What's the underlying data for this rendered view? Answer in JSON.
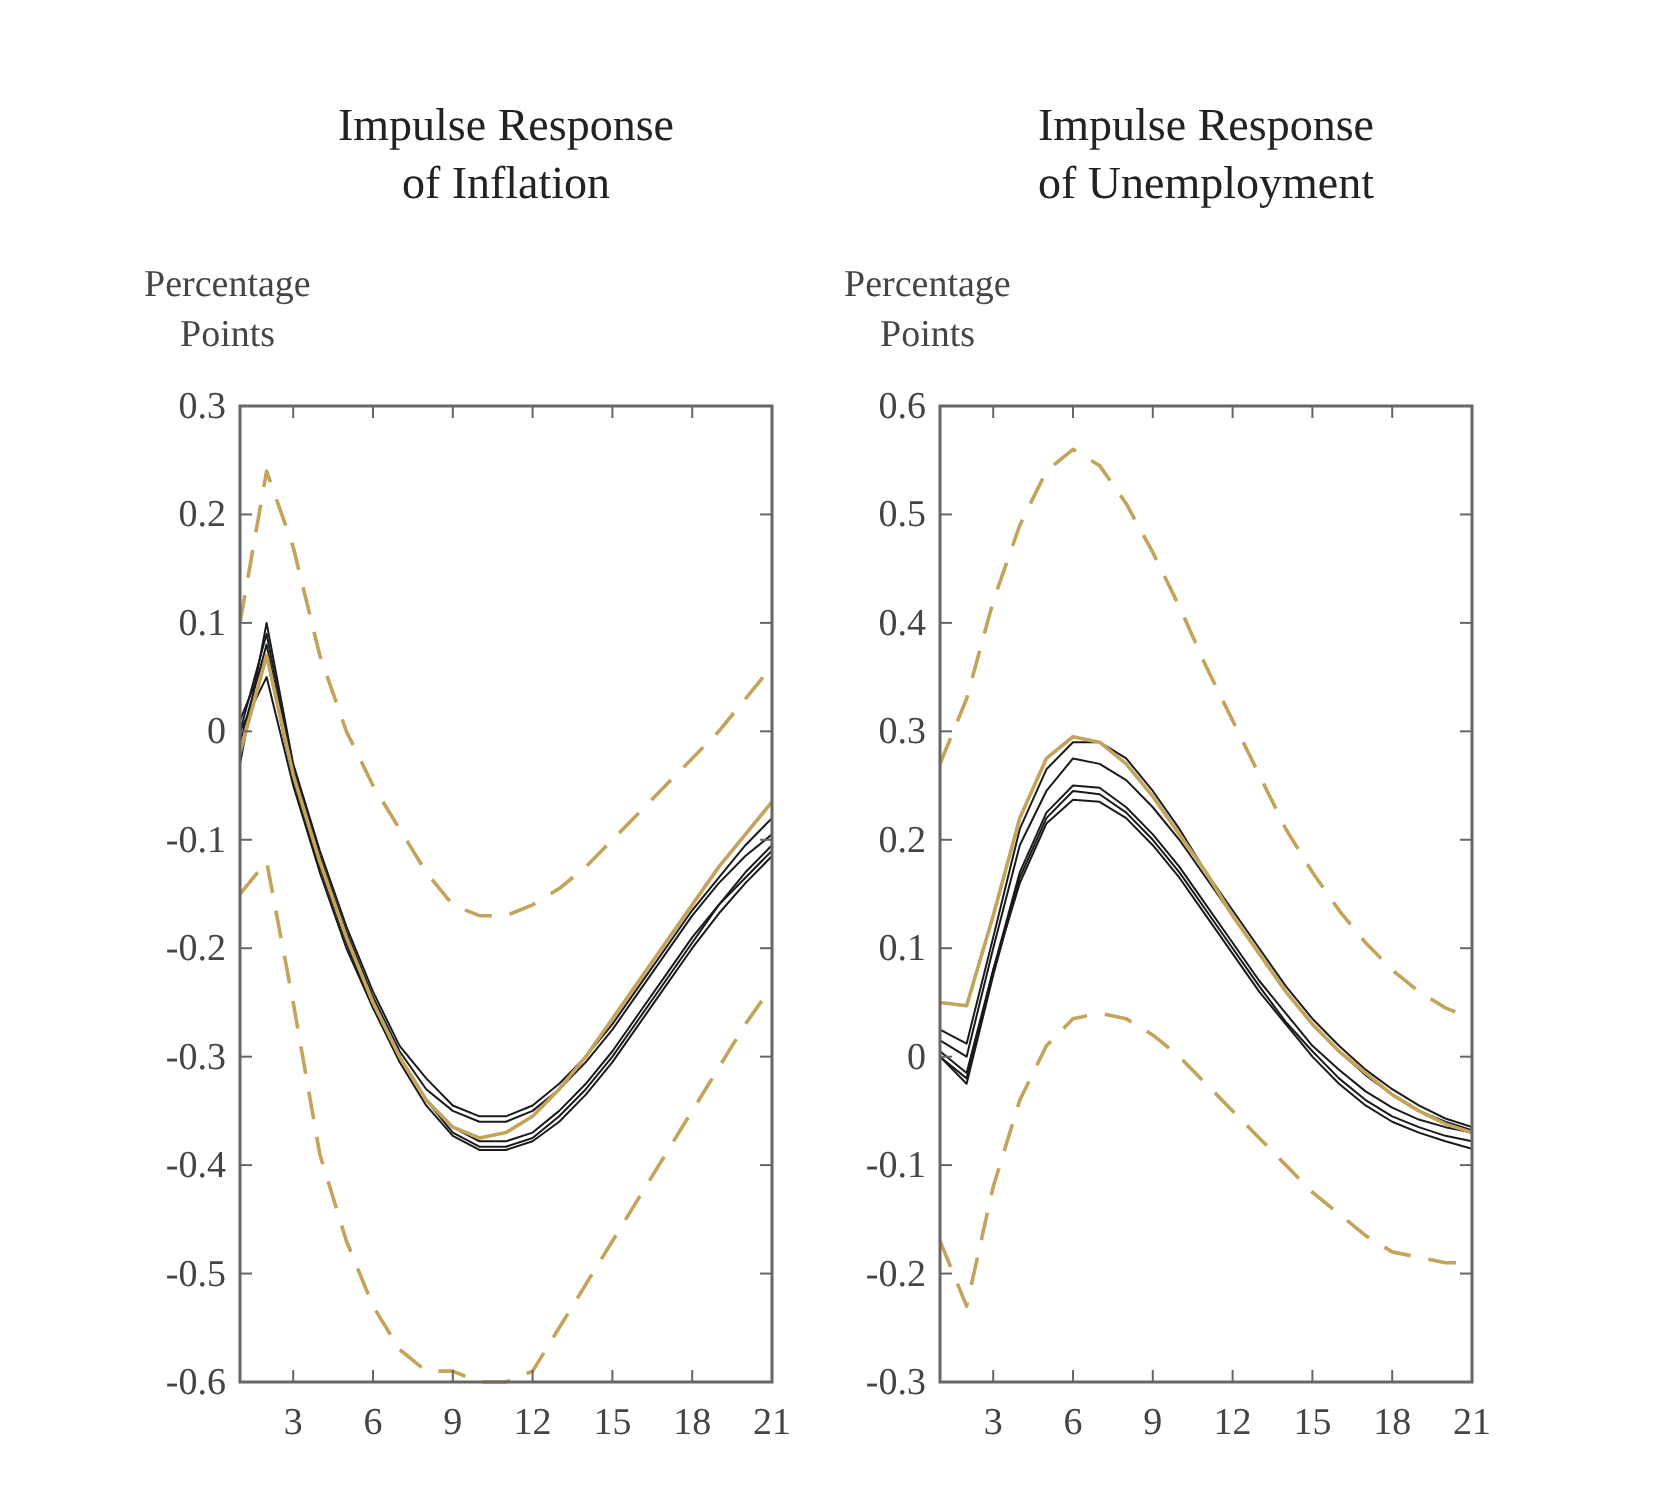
{
  "chart_data": [
    {
      "type": "line",
      "title": "Impulse Response\nof Inflation",
      "ylabel": "Percentage\nPoints",
      "x": [
        1,
        2,
        3,
        4,
        5,
        6,
        7,
        8,
        9,
        10,
        11,
        12,
        13,
        14,
        15,
        16,
        17,
        18,
        19,
        20,
        21
      ],
      "xlim": [
        1,
        21
      ],
      "xticks": [
        3,
        6,
        9,
        12,
        15,
        18,
        21
      ],
      "ylim": [
        -0.6,
        0.3
      ],
      "yticks": [
        -0.6,
        -0.5,
        -0.4,
        -0.3,
        -0.2,
        -0.1,
        0,
        0.1,
        0.2,
        0.3
      ],
      "series": [
        {
          "color": "#1a1a1a",
          "values": [
            -0.03,
            0.1,
            -0.03,
            -0.11,
            -0.18,
            -0.24,
            -0.29,
            -0.32,
            -0.345,
            -0.355,
            -0.355,
            -0.345,
            -0.325,
            -0.3,
            -0.27,
            -0.235,
            -0.2,
            -0.165,
            -0.135,
            -0.105,
            -0.08
          ]
        },
        {
          "color": "#1a1a1a",
          "values": [
            0.0,
            0.09,
            -0.035,
            -0.115,
            -0.185,
            -0.245,
            -0.295,
            -0.33,
            -0.35,
            -0.36,
            -0.36,
            -0.35,
            -0.33,
            -0.305,
            -0.275,
            -0.24,
            -0.205,
            -0.17,
            -0.14,
            -0.115,
            -0.095
          ]
        },
        {
          "color": "#1a1a1a",
          "values": [
            -0.01,
            0.08,
            -0.04,
            -0.12,
            -0.19,
            -0.25,
            -0.3,
            -0.34,
            -0.37,
            -0.383,
            -0.383,
            -0.375,
            -0.355,
            -0.33,
            -0.3,
            -0.265,
            -0.23,
            -0.195,
            -0.16,
            -0.13,
            -0.105
          ]
        },
        {
          "color": "#1a1a1a",
          "values": [
            0.01,
            0.07,
            -0.045,
            -0.125,
            -0.195,
            -0.255,
            -0.305,
            -0.345,
            -0.373,
            -0.386,
            -0.386,
            -0.378,
            -0.36,
            -0.335,
            -0.305,
            -0.27,
            -0.235,
            -0.2,
            -0.168,
            -0.14,
            -0.115
          ]
        },
        {
          "color": "#1a1a1a",
          "values": [
            0.0,
            0.05,
            -0.05,
            -0.13,
            -0.2,
            -0.255,
            -0.3,
            -0.34,
            -0.365,
            -0.378,
            -0.378,
            -0.37,
            -0.35,
            -0.325,
            -0.295,
            -0.26,
            -0.225,
            -0.19,
            -0.16,
            -0.135,
            -0.11
          ]
        },
        {
          "color": "#c4a35a",
          "values": [
            -0.02,
            0.07,
            -0.04,
            -0.12,
            -0.19,
            -0.25,
            -0.3,
            -0.34,
            -0.365,
            -0.375,
            -0.37,
            -0.355,
            -0.33,
            -0.3,
            -0.265,
            -0.23,
            -0.195,
            -0.16,
            -0.125,
            -0.095,
            -0.065
          ]
        },
        {
          "color": "#c4a35a",
          "line_style": "dashed",
          "values": [
            0.1,
            0.24,
            0.17,
            0.07,
            0.0,
            -0.05,
            -0.09,
            -0.13,
            -0.16,
            -0.17,
            -0.17,
            -0.16,
            -0.145,
            -0.125,
            -0.1,
            -0.075,
            -0.05,
            -0.025,
            0.0,
            0.03,
            0.06
          ]
        },
        {
          "color": "#c4a35a",
          "line_style": "dashed",
          "values": [
            -0.15,
            -0.12,
            -0.25,
            -0.39,
            -0.47,
            -0.53,
            -0.57,
            -0.59,
            -0.59,
            -0.6,
            -0.6,
            -0.59,
            -0.55,
            -0.51,
            -0.47,
            -0.43,
            -0.39,
            -0.35,
            -0.31,
            -0.27,
            -0.235
          ]
        }
      ]
    },
    {
      "type": "line",
      "title": "Impulse Response\nof Unemployment",
      "ylabel": "Percentage\nPoints",
      "x": [
        1,
        2,
        3,
        4,
        5,
        6,
        7,
        8,
        9,
        10,
        11,
        12,
        13,
        14,
        15,
        16,
        17,
        18,
        19,
        20,
        21
      ],
      "xlim": [
        1,
        21
      ],
      "xticks": [
        3,
        6,
        9,
        12,
        15,
        18,
        21
      ],
      "ylim": [
        -0.3,
        0.6
      ],
      "yticks": [
        -0.3,
        -0.2,
        -0.1,
        0,
        0.1,
        0.2,
        0.3,
        0.4,
        0.5,
        0.6
      ],
      "series": [
        {
          "color": "#1a1a1a",
          "values": [
            0.025,
            0.012,
            0.11,
            0.21,
            0.265,
            0.29,
            0.29,
            0.275,
            0.245,
            0.21,
            0.17,
            0.135,
            0.1,
            0.065,
            0.035,
            0.01,
            -0.012,
            -0.03,
            -0.045,
            -0.057,
            -0.065
          ]
        },
        {
          "color": "#1a1a1a",
          "values": [
            0.015,
            0.0,
            0.1,
            0.195,
            0.245,
            0.275,
            0.27,
            0.255,
            0.23,
            0.2,
            0.165,
            0.13,
            0.095,
            0.06,
            0.03,
            0.005,
            -0.017,
            -0.035,
            -0.05,
            -0.06,
            -0.068
          ]
        },
        {
          "color": "#1a1a1a",
          "values": [
            0.0,
            -0.02,
            0.08,
            0.17,
            0.225,
            0.25,
            0.248,
            0.23,
            0.205,
            0.175,
            0.14,
            0.105,
            0.07,
            0.04,
            0.01,
            -0.012,
            -0.032,
            -0.047,
            -0.058,
            -0.065,
            -0.07
          ]
        },
        {
          "color": "#1a1a1a",
          "values": [
            0.0,
            -0.025,
            0.075,
            0.165,
            0.22,
            0.245,
            0.242,
            0.225,
            0.2,
            0.17,
            0.135,
            0.1,
            0.065,
            0.032,
            0.005,
            -0.02,
            -0.04,
            -0.055,
            -0.065,
            -0.073,
            -0.078
          ]
        },
        {
          "color": "#1a1a1a",
          "values": [
            0.005,
            -0.015,
            0.08,
            0.16,
            0.215,
            0.237,
            0.235,
            0.22,
            0.195,
            0.165,
            0.13,
            0.095,
            0.06,
            0.03,
            0.0,
            -0.025,
            -0.045,
            -0.06,
            -0.07,
            -0.078,
            -0.085
          ]
        },
        {
          "color": "#c4a35a",
          "values": [
            0.05,
            0.047,
            0.13,
            0.22,
            0.275,
            0.295,
            0.29,
            0.27,
            0.24,
            0.205,
            0.17,
            0.13,
            0.095,
            0.06,
            0.03,
            0.005,
            -0.015,
            -0.035,
            -0.05,
            -0.062,
            -0.07
          ]
        },
        {
          "color": "#c4a35a",
          "line_style": "dashed",
          "values": [
            0.27,
            0.33,
            0.42,
            0.49,
            0.54,
            0.56,
            0.545,
            0.51,
            0.465,
            0.415,
            0.36,
            0.31,
            0.26,
            0.21,
            0.17,
            0.135,
            0.105,
            0.08,
            0.06,
            0.045,
            0.035
          ]
        },
        {
          "color": "#c4a35a",
          "line_style": "dashed",
          "values": [
            -0.17,
            -0.23,
            -0.12,
            -0.04,
            0.01,
            0.035,
            0.04,
            0.035,
            0.02,
            0.0,
            -0.025,
            -0.05,
            -0.075,
            -0.1,
            -0.125,
            -0.145,
            -0.165,
            -0.18,
            -0.185,
            -0.19,
            -0.19
          ]
        }
      ]
    }
  ]
}
